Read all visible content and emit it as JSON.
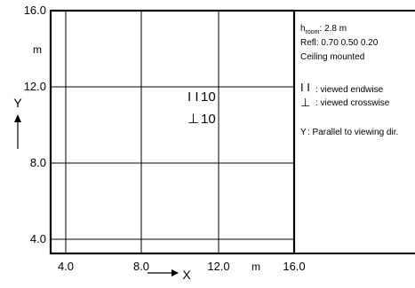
{
  "plan": {
    "y_ticks": [
      "16.0",
      "12.0",
      "8.0",
      "4.0"
    ],
    "x_ticks": [
      "4.0",
      "8.0",
      "12.0",
      "16.0"
    ],
    "x_unit": "m",
    "y_unit": "m",
    "x_axis_name": "X",
    "y_axis_name": "Y",
    "luminaire_endwise": {
      "symbol": "I I",
      "count": "10"
    },
    "luminaire_crosswise": {
      "symbol": "⊥",
      "count": "10"
    }
  },
  "legend": {
    "h_room_label": "h",
    "h_room_sub": "room",
    "h_room_value": ": 2.8 m",
    "refl": "Refl: 0.70 0.50 0.20",
    "mounting": "Ceiling mounted",
    "endwise_symbol": "I I",
    "endwise_text": ": viewed endwise",
    "crosswise_symbol": "⊥",
    "crosswise_text": ": viewed crosswise",
    "y_symbol": "Y",
    "y_text": " : Parallel to viewing dir."
  },
  "colors": {
    "line": "#000000",
    "background": "#ffffff"
  }
}
